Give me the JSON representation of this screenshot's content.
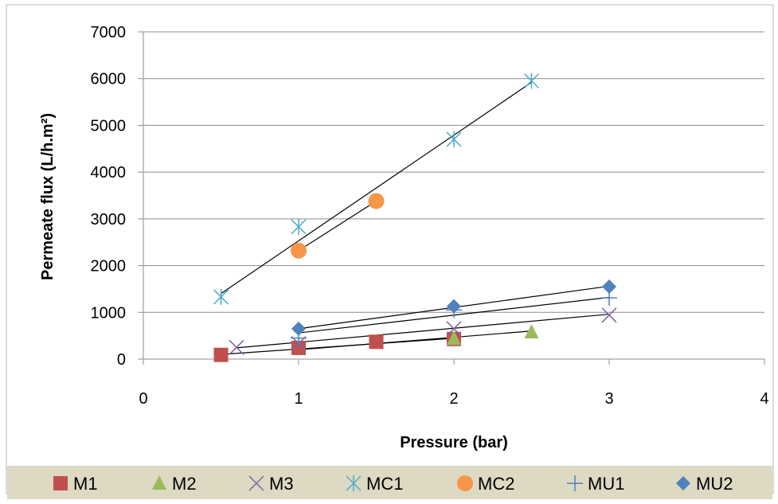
{
  "chart_data": {
    "type": "scatter",
    "xlabel": "Pressure (bar)",
    "ylabel": "Permeate flux (L/h.m²)",
    "xlim": [
      0,
      4
    ],
    "ylim": [
      0,
      7000
    ],
    "x_ticks": [
      "0",
      "1",
      "2",
      "3",
      "4"
    ],
    "y_ticks": [
      "0",
      "1000",
      "2000",
      "3000",
      "4000",
      "5000",
      "6000",
      "7000"
    ],
    "grid": "horizontal",
    "legend_position": "bottom",
    "series": [
      {
        "name": "M1",
        "marker": "square",
        "color": "#c0504d",
        "points": [
          [
            0.5,
            90
          ],
          [
            1.0,
            240
          ],
          [
            1.5,
            370
          ],
          [
            2.0,
            430
          ]
        ],
        "trendline": [
          [
            0.5,
            100
          ],
          [
            2.0,
            445
          ]
        ]
      },
      {
        "name": "M2",
        "marker": "triangle",
        "color": "#9bbb59",
        "points": [
          [
            2.0,
            440
          ],
          [
            2.5,
            580
          ]
        ],
        "trendline": [
          [
            1.0,
            200
          ],
          [
            2.5,
            600
          ]
        ]
      },
      {
        "name": "M3",
        "marker": "x",
        "color": "#8064a2",
        "points": [
          [
            0.6,
            250
          ],
          [
            1.0,
            330
          ],
          [
            2.0,
            650
          ],
          [
            3.0,
            940
          ]
        ],
        "trendline": [
          [
            0.6,
            240
          ],
          [
            3.0,
            960
          ]
        ]
      },
      {
        "name": "MC1",
        "marker": "asterisk",
        "color": "#4bacc6",
        "points": [
          [
            0.5,
            1330
          ],
          [
            1.0,
            2830
          ],
          [
            2.0,
            4700
          ],
          [
            2.5,
            5950
          ]
        ],
        "trendline": [
          [
            0.5,
            1400
          ],
          [
            2.5,
            5920
          ]
        ]
      },
      {
        "name": "MC2",
        "marker": "circle",
        "color": "#f79646",
        "points": [
          [
            1.0,
            2320
          ],
          [
            1.5,
            3380
          ]
        ],
        "trendline": [
          [
            1.0,
            2320
          ],
          [
            1.5,
            3380
          ]
        ]
      },
      {
        "name": "MU1",
        "marker": "plus",
        "color": "#4f81bd",
        "points": [
          [
            1.0,
            450
          ],
          [
            2.0,
            1050
          ],
          [
            3.0,
            1310
          ]
        ],
        "trendline": [
          [
            1.0,
            560
          ],
          [
            3.0,
            1320
          ]
        ]
      },
      {
        "name": "MU2",
        "marker": "diamond",
        "color": "#4f81bd",
        "points": [
          [
            1.0,
            650
          ],
          [
            2.0,
            1130
          ],
          [
            3.0,
            1550
          ]
        ],
        "trendline": [
          [
            1.0,
            650
          ],
          [
            3.0,
            1560
          ]
        ]
      }
    ]
  }
}
